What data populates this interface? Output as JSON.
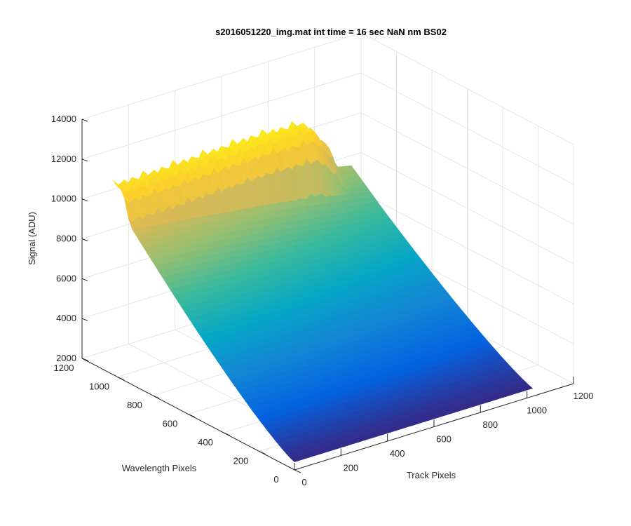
{
  "chart_data": {
    "type": "surface",
    "title": "s2016051220_img.mat int time = 16 sec  NaN nm BS02",
    "xlabel": "Track Pixels",
    "ylabel": "Wavelength Pixels",
    "zlabel": "Signal (ADU)",
    "xlim": [
      0,
      1200
    ],
    "ylim": [
      0,
      1200
    ],
    "zlim": [
      2000,
      14000
    ],
    "xticks": [
      "0",
      "200",
      "400",
      "600",
      "800",
      "1000",
      "1200"
    ],
    "yticks": [
      "0",
      "200",
      "400",
      "600",
      "800",
      "1000",
      "1200"
    ],
    "zticks": [
      "2000",
      "4000",
      "6000",
      "8000",
      "10000",
      "12000",
      "14000"
    ],
    "grid": true,
    "colormap": "parula",
    "colors": [
      "#352a87",
      "#0363e1",
      "#1485d4",
      "#06a7c6",
      "#38b99e",
      "#92bf73",
      "#d9ba56",
      "#fcce2e",
      "#f9fb0e"
    ],
    "surface": {
      "x_extent": [
        0,
        1024
      ],
      "y_extent": [
        0,
        1024
      ],
      "z_min": 2400,
      "z_max": 12300,
      "plateau_z": 11800,
      "track_stripes": 24
    }
  }
}
